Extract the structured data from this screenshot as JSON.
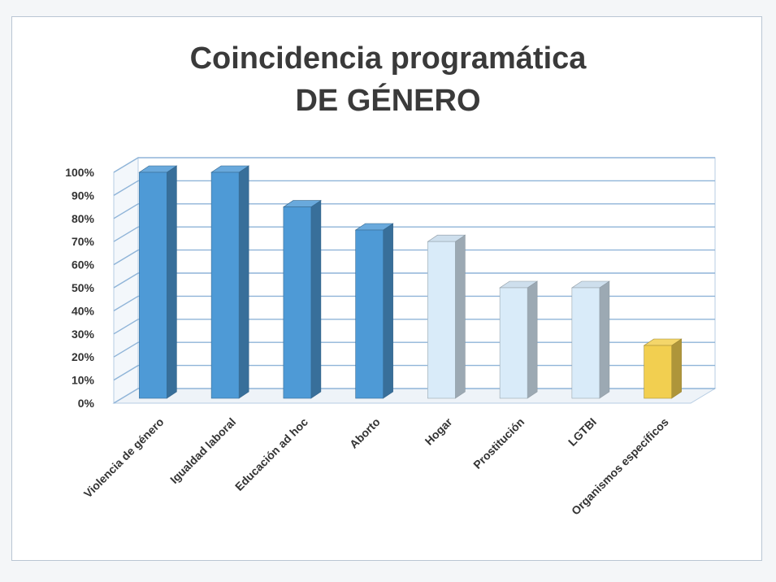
{
  "chart_data": {
    "type": "bar",
    "title": "Coincidencia programática",
    "subtitle": "DE GÉNERO",
    "categories": [
      "Violencia de género",
      "Igualdad laboral",
      "Educación ad hoc",
      "Aborto",
      "Hogar",
      "Prostitución",
      "LGTBI",
      "Organismos específicos"
    ],
    "values": [
      100,
      100,
      85,
      75,
      70,
      50,
      50,
      25
    ],
    "y_ticks": [
      "0%",
      "10%",
      "20%",
      "30%",
      "40%",
      "50%",
      "60%",
      "70%",
      "80%",
      "90%",
      "100%"
    ],
    "ylim": [
      0,
      100
    ],
    "grid": true,
    "legend": "none",
    "colors": {
      "strong": "#4e9ad6",
      "light": "#d9ebf9",
      "accent": "#f2cf50",
      "grid": "#8fb4d8"
    },
    "bar_color_keys": [
      "strong",
      "strong",
      "strong",
      "strong",
      "light",
      "light",
      "light",
      "accent"
    ]
  }
}
